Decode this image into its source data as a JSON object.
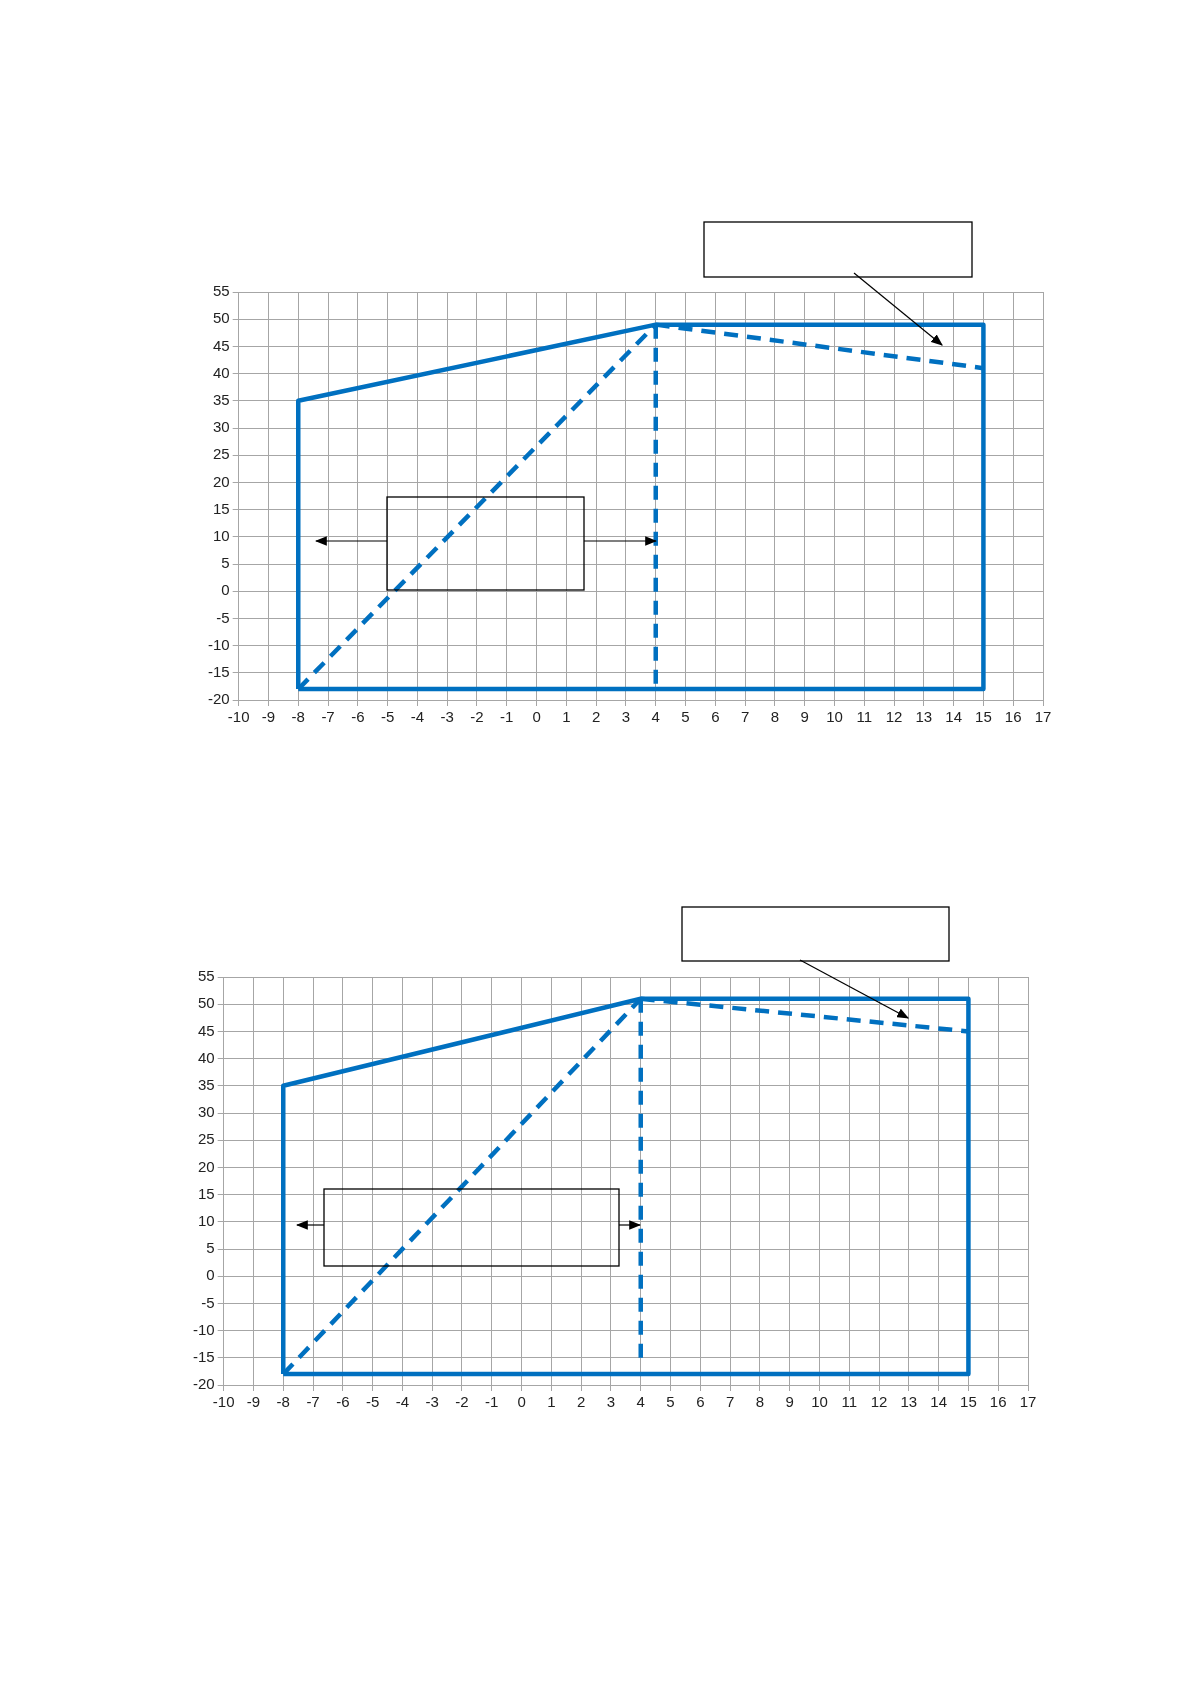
{
  "chart_data": [
    {
      "type": "line",
      "legend": false,
      "grid": true,
      "marker": "none",
      "xlim": [
        -10,
        17
      ],
      "xticks": [
        -10,
        -9,
        -8,
        -7,
        -6,
        -5,
        -4,
        -3,
        -2,
        -1,
        0,
        1,
        2,
        3,
        4,
        5,
        6,
        7,
        8,
        9,
        10,
        11,
        12,
        13,
        14,
        15,
        16,
        17
      ],
      "ylim": [
        -20,
        55
      ],
      "yticks": [
        -20,
        -15,
        -10,
        -5,
        0,
        5,
        10,
        15,
        20,
        25,
        30,
        35,
        40,
        45,
        50,
        55
      ],
      "series": [
        {
          "color": "#0070c0",
          "line_style": "solid",
          "x": [
            -8,
            -8,
            4,
            15,
            15
          ],
          "values": [
            -18,
            35,
            49,
            49,
            -18
          ]
        },
        {
          "color": "#0070c0",
          "line_style": "solid",
          "x": [
            -8,
            15
          ],
          "values": [
            -18,
            -18
          ]
        },
        {
          "color": "#0070c0",
          "line_style": "dashed",
          "x": [
            -8,
            4
          ],
          "values": [
            -18,
            49
          ]
        },
        {
          "color": "#0070c0",
          "line_style": "dashed",
          "x": [
            4,
            4
          ],
          "values": [
            49,
            -17
          ]
        },
        {
          "color": "#0070c0",
          "line_style": "dashed",
          "x": [
            4,
            15
          ],
          "values": [
            49,
            41
          ]
        }
      ]
    },
    {
      "type": "line",
      "legend": false,
      "grid": true,
      "marker": "none",
      "xlim": [
        -10,
        17
      ],
      "xticks": [
        -10,
        -9,
        -8,
        -7,
        -6,
        -5,
        -4,
        -3,
        -2,
        -1,
        0,
        1,
        2,
        3,
        4,
        5,
        6,
        7,
        8,
        9,
        10,
        11,
        12,
        13,
        14,
        15,
        16,
        17
      ],
      "ylim": [
        -20,
        55
      ],
      "yticks": [
        -20,
        -15,
        -10,
        -5,
        0,
        5,
        10,
        15,
        20,
        25,
        30,
        35,
        40,
        45,
        50,
        55
      ],
      "series": [
        {
          "color": "#0070c0",
          "line_style": "solid",
          "x": [
            -8,
            -8,
            4,
            15,
            15
          ],
          "values": [
            -18,
            35,
            51,
            51,
            -18
          ]
        },
        {
          "color": "#0070c0",
          "line_style": "solid",
          "x": [
            -8,
            15
          ],
          "values": [
            -18,
            -18
          ]
        },
        {
          "color": "#0070c0",
          "line_style": "dashed",
          "x": [
            -8,
            4
          ],
          "values": [
            -18,
            51
          ]
        },
        {
          "color": "#0070c0",
          "line_style": "dashed",
          "x": [
            4,
            4
          ],
          "values": [
            51,
            -15
          ]
        },
        {
          "color": "#0070c0",
          "line_style": "dashed",
          "x": [
            4,
            15
          ],
          "values": [
            51,
            45
          ]
        }
      ]
    }
  ]
}
